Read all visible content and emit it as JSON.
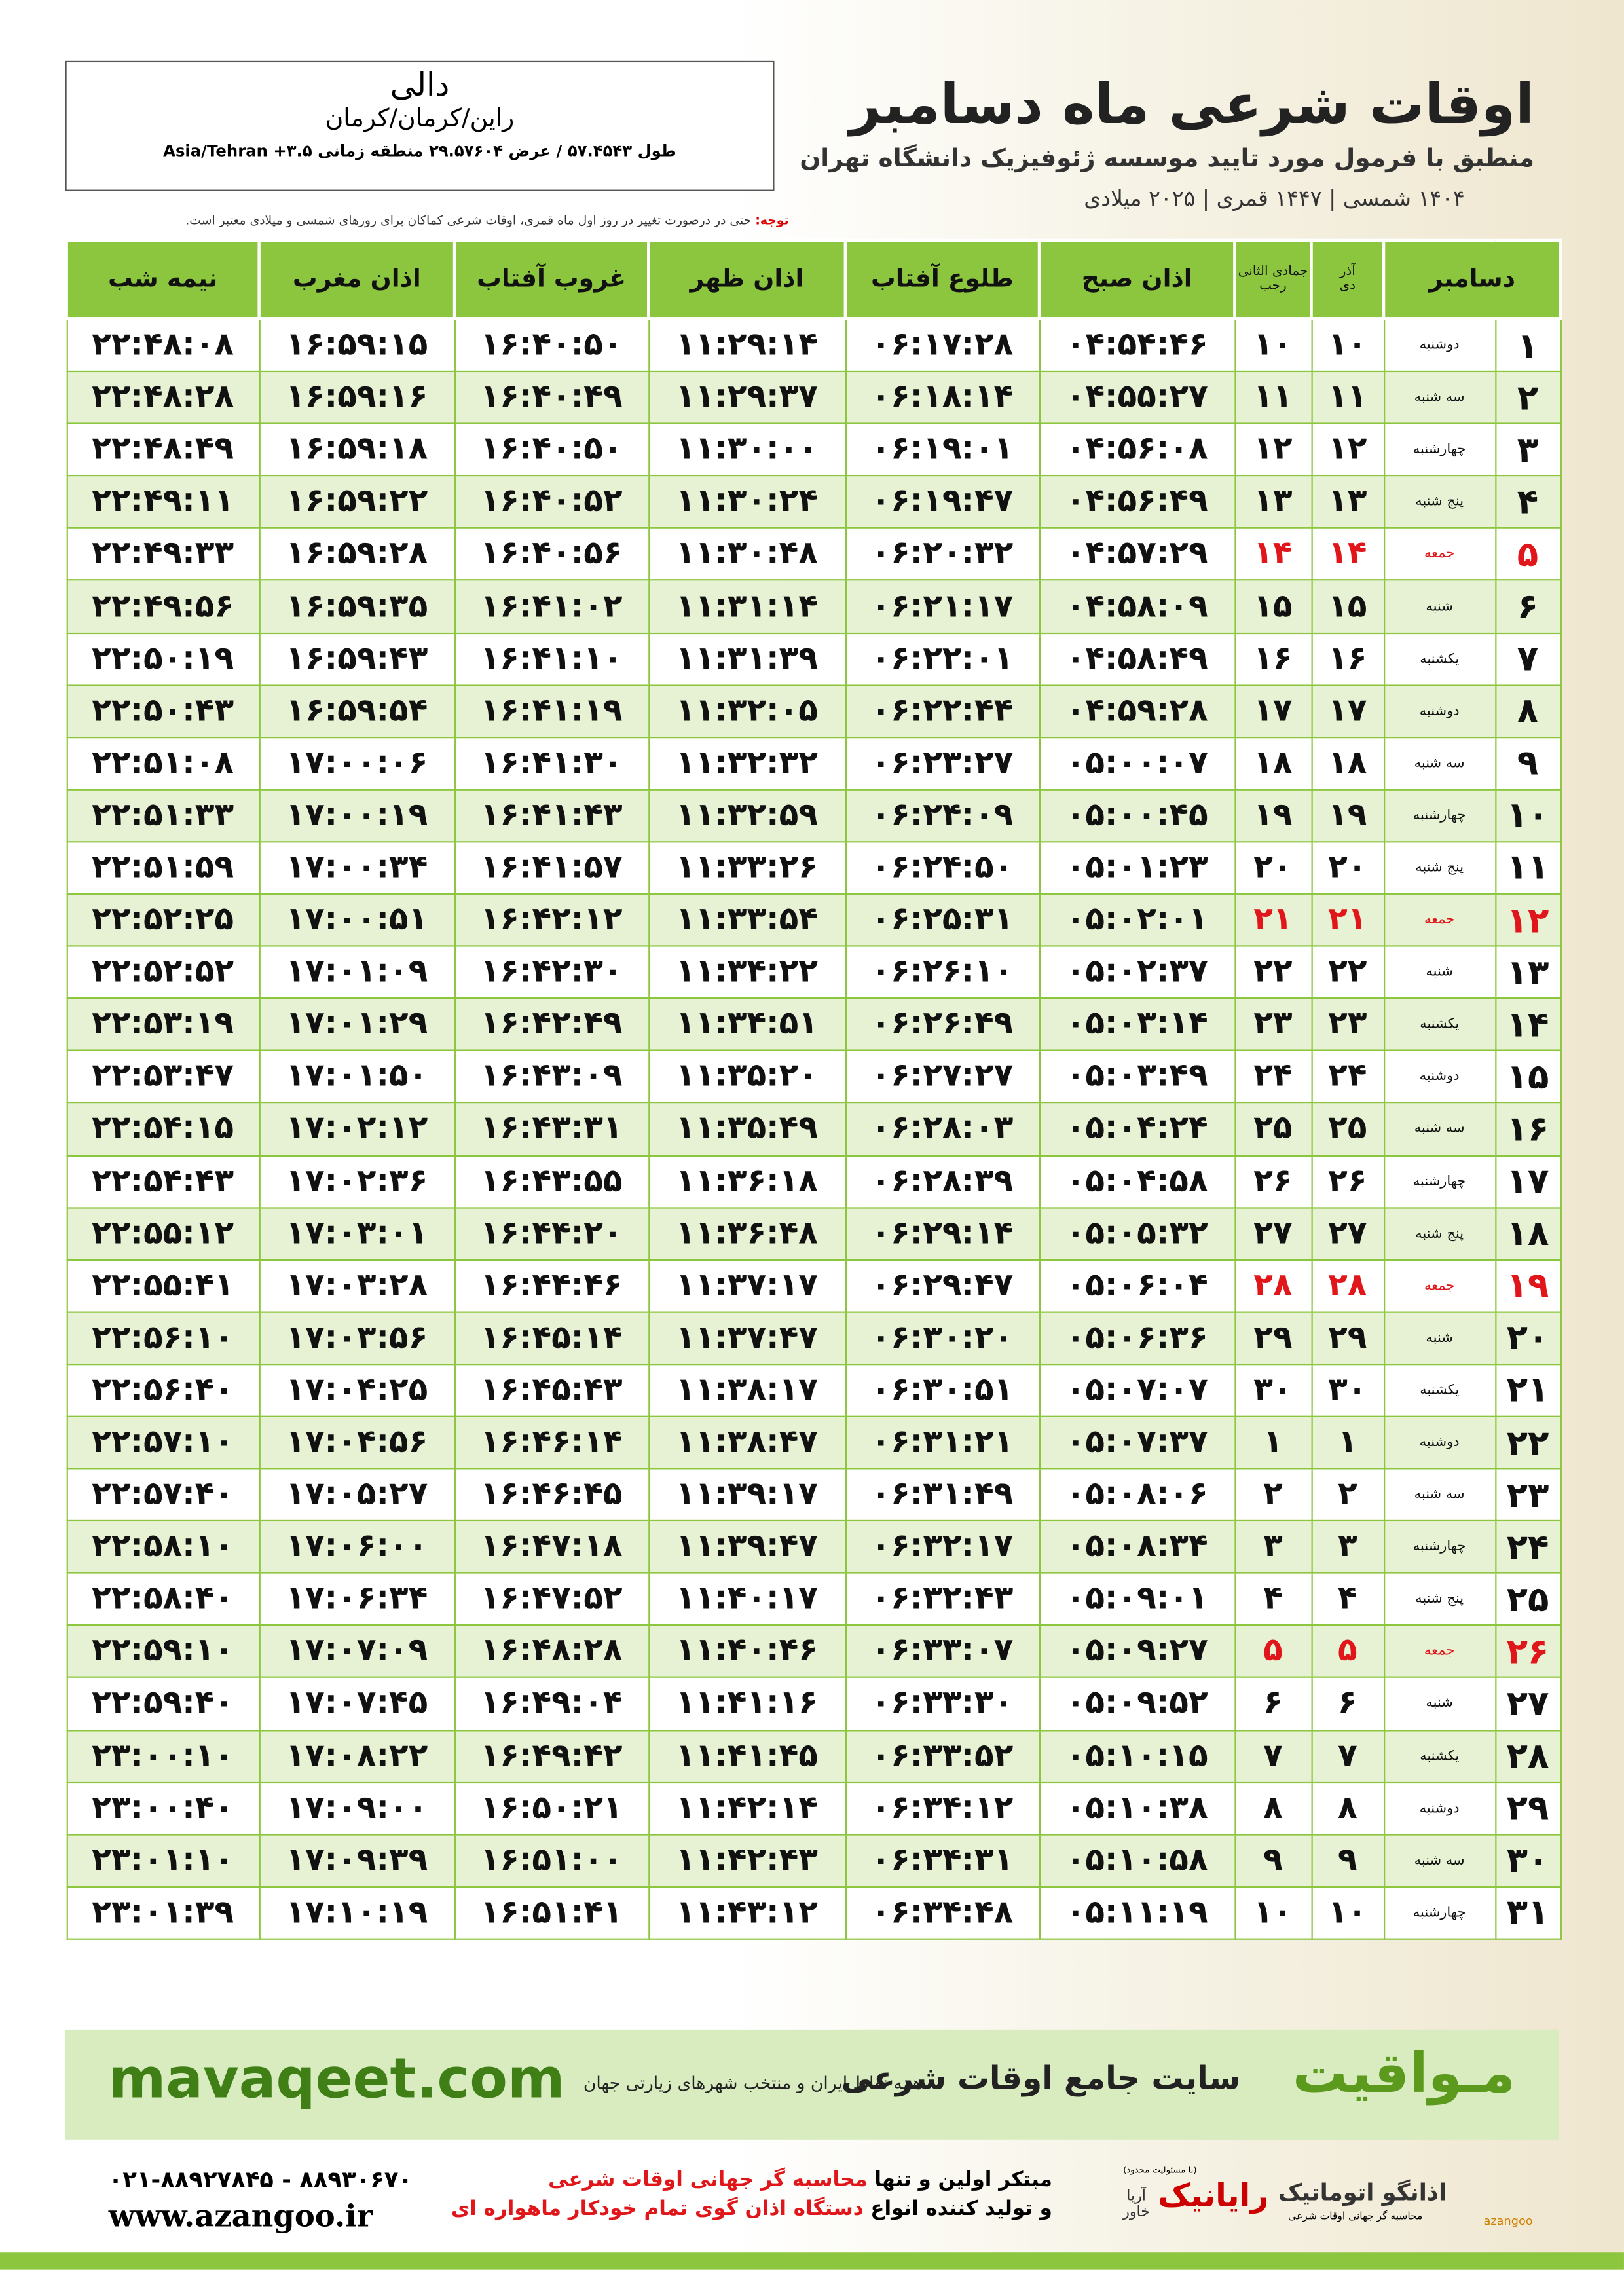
{
  "header": {
    "title": "اوقات شرعی ماه دسامبر",
    "subtitle": "منطبق با فرمول مورد تایید موسسه ژئوفیزیک دانشگاه تهران",
    "date_line": "۱۴۰۴ شمسی | ۱۴۴۷ قمری | ۲۰۲۵ میلادی"
  },
  "location": {
    "city": "دالی",
    "region": "راین/کرمان/کرمان",
    "coords": "طول ۵۷.۴۵۴۳ / عرض ۲۹.۵۷۶۰۴ منطقه زمانی ۳.۵+ Asia/Tehran"
  },
  "note": {
    "label": "توجه:",
    "text": "حتی در درصورت تغییر در روز اول ماه قمری، اوقات شرعی کماکان برای روزهای شمسی و میلادی معتبر است."
  },
  "table": {
    "headers": {
      "month": "دسامبر",
      "solar_month_top": "آذر",
      "solar_month": "دی",
      "lunar_month_top": "جمادی الثانی",
      "lunar_month": "رجب",
      "times": [
        "اذان صبح",
        "طلوع آفتاب",
        "اذان ظهر",
        "غروب آفتاب",
        "اذان مغرب",
        "نیمه شب"
      ]
    },
    "rows": [
      {
        "day": "۱",
        "weekday": "دوشنبه",
        "solar_day": "۱۰",
        "lunar_day": "۱۰",
        "times": [
          "۰۴:۵۴:۴۶",
          "۰۶:۱۷:۲۸",
          "۱۱:۲۹:۱۴",
          "۱۶:۴۰:۵۰",
          "۱۶:۵۹:۱۵",
          "۲۲:۴۸:۰۸"
        ]
      },
      {
        "day": "۲",
        "weekday": "سه شنبه",
        "solar_day": "۱۱",
        "lunar_day": "۱۱",
        "times": [
          "۰۴:۵۵:۲۷",
          "۰۶:۱۸:۱۴",
          "۱۱:۲۹:۳۷",
          "۱۶:۴۰:۴۹",
          "۱۶:۵۹:۱۶",
          "۲۲:۴۸:۲۸"
        ]
      },
      {
        "day": "۳",
        "weekday": "چهارشنبه",
        "solar_day": "۱۲",
        "lunar_day": "۱۲",
        "times": [
          "۰۴:۵۶:۰۸",
          "۰۶:۱۹:۰۱",
          "۱۱:۳۰:۰۰",
          "۱۶:۴۰:۵۰",
          "۱۶:۵۹:۱۸",
          "۲۲:۴۸:۴۹"
        ]
      },
      {
        "day": "۴",
        "weekday": "پنج شنبه",
        "solar_day": "۱۳",
        "lunar_day": "۱۳",
        "times": [
          "۰۴:۵۶:۴۹",
          "۰۶:۱۹:۴۷",
          "۱۱:۳۰:۲۴",
          "۱۶:۴۰:۵۲",
          "۱۶:۵۹:۲۲",
          "۲۲:۴۹:۱۱"
        ]
      },
      {
        "day": "۵",
        "weekday": "جمعه",
        "solar_day": "۱۴",
        "lunar_day": "۱۴",
        "holiday": true,
        "times": [
          "۰۴:۵۷:۲۹",
          "۰۶:۲۰:۳۲",
          "۱۱:۳۰:۴۸",
          "۱۶:۴۰:۵۶",
          "۱۶:۵۹:۲۸",
          "۲۲:۴۹:۳۳"
        ]
      },
      {
        "day": "۶",
        "weekday": "شنبه",
        "solar_day": "۱۵",
        "lunar_day": "۱۵",
        "times": [
          "۰۴:۵۸:۰۹",
          "۰۶:۲۱:۱۷",
          "۱۱:۳۱:۱۴",
          "۱۶:۴۱:۰۲",
          "۱۶:۵۹:۳۵",
          "۲۲:۴۹:۵۶"
        ]
      },
      {
        "day": "۷",
        "weekday": "یکشنبه",
        "solar_day": "۱۶",
        "lunar_day": "۱۶",
        "times": [
          "۰۴:۵۸:۴۹",
          "۰۶:۲۲:۰۱",
          "۱۱:۳۱:۳۹",
          "۱۶:۴۱:۱۰",
          "۱۶:۵۹:۴۳",
          "۲۲:۵۰:۱۹"
        ]
      },
      {
        "day": "۸",
        "weekday": "دوشنبه",
        "solar_day": "۱۷",
        "lunar_day": "۱۷",
        "times": [
          "۰۴:۵۹:۲۸",
          "۰۶:۲۲:۴۴",
          "۱۱:۳۲:۰۵",
          "۱۶:۴۱:۱۹",
          "۱۶:۵۹:۵۴",
          "۲۲:۵۰:۴۳"
        ]
      },
      {
        "day": "۹",
        "weekday": "سه شنبه",
        "solar_day": "۱۸",
        "lunar_day": "۱۸",
        "times": [
          "۰۵:۰۰:۰۷",
          "۰۶:۲۳:۲۷",
          "۱۱:۳۲:۳۲",
          "۱۶:۴۱:۳۰",
          "۱۷:۰۰:۰۶",
          "۲۲:۵۱:۰۸"
        ]
      },
      {
        "day": "۱۰",
        "weekday": "چهارشنبه",
        "solar_day": "۱۹",
        "lunar_day": "۱۹",
        "times": [
          "۰۵:۰۰:۴۵",
          "۰۶:۲۴:۰۹",
          "۱۱:۳۲:۵۹",
          "۱۶:۴۱:۴۳",
          "۱۷:۰۰:۱۹",
          "۲۲:۵۱:۳۳"
        ]
      },
      {
        "day": "۱۱",
        "weekday": "پنج شنبه",
        "solar_day": "۲۰",
        "lunar_day": "۲۰",
        "times": [
          "۰۵:۰۱:۲۳",
          "۰۶:۲۴:۵۰",
          "۱۱:۳۳:۲۶",
          "۱۶:۴۱:۵۷",
          "۱۷:۰۰:۳۴",
          "۲۲:۵۱:۵۹"
        ]
      },
      {
        "day": "۱۲",
        "weekday": "جمعه",
        "solar_day": "۲۱",
        "lunar_day": "۲۱",
        "holiday": true,
        "times": [
          "۰۵:۰۲:۰۱",
          "۰۶:۲۵:۳۱",
          "۱۱:۳۳:۵۴",
          "۱۶:۴۲:۱۲",
          "۱۷:۰۰:۵۱",
          "۲۲:۵۲:۲۵"
        ]
      },
      {
        "day": "۱۳",
        "weekday": "شنبه",
        "solar_day": "۲۲",
        "lunar_day": "۲۲",
        "times": [
          "۰۵:۰۲:۳۷",
          "۰۶:۲۶:۱۰",
          "۱۱:۳۴:۲۲",
          "۱۶:۴۲:۳۰",
          "۱۷:۰۱:۰۹",
          "۲۲:۵۲:۵۲"
        ]
      },
      {
        "day": "۱۴",
        "weekday": "یکشنبه",
        "solar_day": "۲۳",
        "lunar_day": "۲۳",
        "times": [
          "۰۵:۰۳:۱۴",
          "۰۶:۲۶:۴۹",
          "۱۱:۳۴:۵۱",
          "۱۶:۴۲:۴۹",
          "۱۷:۰۱:۲۹",
          "۲۲:۵۳:۱۹"
        ]
      },
      {
        "day": "۱۵",
        "weekday": "دوشنبه",
        "solar_day": "۲۴",
        "lunar_day": "۲۴",
        "times": [
          "۰۵:۰۳:۴۹",
          "۰۶:۲۷:۲۷",
          "۱۱:۳۵:۲۰",
          "۱۶:۴۳:۰۹",
          "۱۷:۰۱:۵۰",
          "۲۲:۵۳:۴۷"
        ]
      },
      {
        "day": "۱۶",
        "weekday": "سه شنبه",
        "solar_day": "۲۵",
        "lunar_day": "۲۵",
        "times": [
          "۰۵:۰۴:۲۴",
          "۰۶:۲۸:۰۳",
          "۱۱:۳۵:۴۹",
          "۱۶:۴۳:۳۱",
          "۱۷:۰۲:۱۲",
          "۲۲:۵۴:۱۵"
        ]
      },
      {
        "day": "۱۷",
        "weekday": "چهارشنبه",
        "solar_day": "۲۶",
        "lunar_day": "۲۶",
        "times": [
          "۰۵:۰۴:۵۸",
          "۰۶:۲۸:۳۹",
          "۱۱:۳۶:۱۸",
          "۱۶:۴۳:۵۵",
          "۱۷:۰۲:۳۶",
          "۲۲:۵۴:۴۳"
        ]
      },
      {
        "day": "۱۸",
        "weekday": "پنج شنبه",
        "solar_day": "۲۷",
        "lunar_day": "۲۷",
        "times": [
          "۰۵:۰۵:۳۲",
          "۰۶:۲۹:۱۴",
          "۱۱:۳۶:۴۸",
          "۱۶:۴۴:۲۰",
          "۱۷:۰۳:۰۱",
          "۲۲:۵۵:۱۲"
        ]
      },
      {
        "day": "۱۹",
        "weekday": "جمعه",
        "solar_day": "۲۸",
        "lunar_day": "۲۸",
        "holiday": true,
        "times": [
          "۰۵:۰۶:۰۴",
          "۰۶:۲۹:۴۷",
          "۱۱:۳۷:۱۷",
          "۱۶:۴۴:۴۶",
          "۱۷:۰۳:۲۸",
          "۲۲:۵۵:۴۱"
        ]
      },
      {
        "day": "۲۰",
        "weekday": "شنبه",
        "solar_day": "۲۹",
        "lunar_day": "۲۹",
        "times": [
          "۰۵:۰۶:۳۶",
          "۰۶:۳۰:۲۰",
          "۱۱:۳۷:۴۷",
          "۱۶:۴۵:۱۴",
          "۱۷:۰۳:۵۶",
          "۲۲:۵۶:۱۰"
        ]
      },
      {
        "day": "۲۱",
        "weekday": "یکشنبه",
        "solar_day": "۳۰",
        "lunar_day": "۳۰",
        "times": [
          "۰۵:۰۷:۰۷",
          "۰۶:۳۰:۵۱",
          "۱۱:۳۸:۱۷",
          "۱۶:۴۵:۴۳",
          "۱۷:۰۴:۲۵",
          "۲۲:۵۶:۴۰"
        ]
      },
      {
        "day": "۲۲",
        "weekday": "دوشنبه",
        "solar_day": "۱",
        "lunar_day": "۱",
        "times": [
          "۰۵:۰۷:۳۷",
          "۰۶:۳۱:۲۱",
          "۱۱:۳۸:۴۷",
          "۱۶:۴۶:۱۴",
          "۱۷:۰۴:۵۶",
          "۲۲:۵۷:۱۰"
        ]
      },
      {
        "day": "۲۳",
        "weekday": "سه شنبه",
        "solar_day": "۲",
        "lunar_day": "۲",
        "times": [
          "۰۵:۰۸:۰۶",
          "۰۶:۳۱:۴۹",
          "۱۱:۳۹:۱۷",
          "۱۶:۴۶:۴۵",
          "۱۷:۰۵:۲۷",
          "۲۲:۵۷:۴۰"
        ]
      },
      {
        "day": "۲۴",
        "weekday": "چهارشنبه",
        "solar_day": "۳",
        "lunar_day": "۳",
        "times": [
          "۰۵:۰۸:۳۴",
          "۰۶:۳۲:۱۷",
          "۱۱:۳۹:۴۷",
          "۱۶:۴۷:۱۸",
          "۱۷:۰۶:۰۰",
          "۲۲:۵۸:۱۰"
        ]
      },
      {
        "day": "۲۵",
        "weekday": "پنج شنبه",
        "solar_day": "۴",
        "lunar_day": "۴",
        "times": [
          "۰۵:۰۹:۰۱",
          "۰۶:۳۲:۴۳",
          "۱۱:۴۰:۱۷",
          "۱۶:۴۷:۵۲",
          "۱۷:۰۶:۳۴",
          "۲۲:۵۸:۴۰"
        ]
      },
      {
        "day": "۲۶",
        "weekday": "جمعه",
        "solar_day": "۵",
        "lunar_day": "۵",
        "holiday": true,
        "times": [
          "۰۵:۰۹:۲۷",
          "۰۶:۳۳:۰۷",
          "۱۱:۴۰:۴۶",
          "۱۶:۴۸:۲۸",
          "۱۷:۰۷:۰۹",
          "۲۲:۵۹:۱۰"
        ]
      },
      {
        "day": "۲۷",
        "weekday": "شنبه",
        "solar_day": "۶",
        "lunar_day": "۶",
        "times": [
          "۰۵:۰۹:۵۲",
          "۰۶:۳۳:۳۰",
          "۱۱:۴۱:۱۶",
          "۱۶:۴۹:۰۴",
          "۱۷:۰۷:۴۵",
          "۲۲:۵۹:۴۰"
        ]
      },
      {
        "day": "۲۸",
        "weekday": "یکشنبه",
        "solar_day": "۷",
        "lunar_day": "۷",
        "times": [
          "۰۵:۱۰:۱۵",
          "۰۶:۳۳:۵۲",
          "۱۱:۴۱:۴۵",
          "۱۶:۴۹:۴۲",
          "۱۷:۰۸:۲۲",
          "۲۳:۰۰:۱۰"
        ]
      },
      {
        "day": "۲۹",
        "weekday": "دوشنبه",
        "solar_day": "۸",
        "lunar_day": "۸",
        "times": [
          "۰۵:۱۰:۳۸",
          "۰۶:۳۴:۱۲",
          "۱۱:۴۲:۱۴",
          "۱۶:۵۰:۲۱",
          "۱۷:۰۹:۰۰",
          "۲۳:۰۰:۴۰"
        ]
      },
      {
        "day": "۳۰",
        "weekday": "سه شنبه",
        "solar_day": "۹",
        "lunar_day": "۹",
        "times": [
          "۰۵:۱۰:۵۸",
          "۰۶:۳۴:۳۱",
          "۱۱:۴۲:۴۳",
          "۱۶:۵۱:۰۰",
          "۱۷:۰۹:۳۹",
          "۲۳:۰۱:۱۰"
        ]
      },
      {
        "day": "۳۱",
        "weekday": "چهارشنبه",
        "solar_day": "۱۰",
        "lunar_day": "۱۰",
        "times": [
          "۰۵:۱۱:۱۹",
          "۰۶:۳۴:۴۸",
          "۱۱:۴۳:۱۲",
          "۱۶:۵۱:۴۱",
          "۱۷:۱۰:۱۹",
          "۲۳:۰۱:۳۹"
        ]
      }
    ]
  },
  "banner": {
    "brand": "مـواقیت",
    "slogan": "سایت جامع اوقات شرعی",
    "tagline": "همه نقاط ایران و منتخب شهرهای زیارتی جهان",
    "url": "mavaqeet.com"
  },
  "footer": {
    "line1_prefix": "مبتکر اولین و تنها",
    "line1_highlight": "محاسبه گر جهانی اوقات شرعی",
    "line2_prefix": "و تولید کننده انواع",
    "line2_highlight": "دستگاه اذان گوی تمام خودکار ماهواره ای",
    "phone": "۰۲۱-۸۸۹۲۷۸۴۵ - ۸۸۹۳۰۶۷۰",
    "website": "www.azangoo.ir",
    "rayanik": "رایانیک",
    "rayanik_note": "(با مسئولیت محدود)",
    "arya": "آریا خاور",
    "azangoo_brand": "اذانگو اتوماتیک",
    "azangoo_sub": "محاسبه گر جهانی اوقات شرعی",
    "azangoo_latin": "azangoo"
  }
}
